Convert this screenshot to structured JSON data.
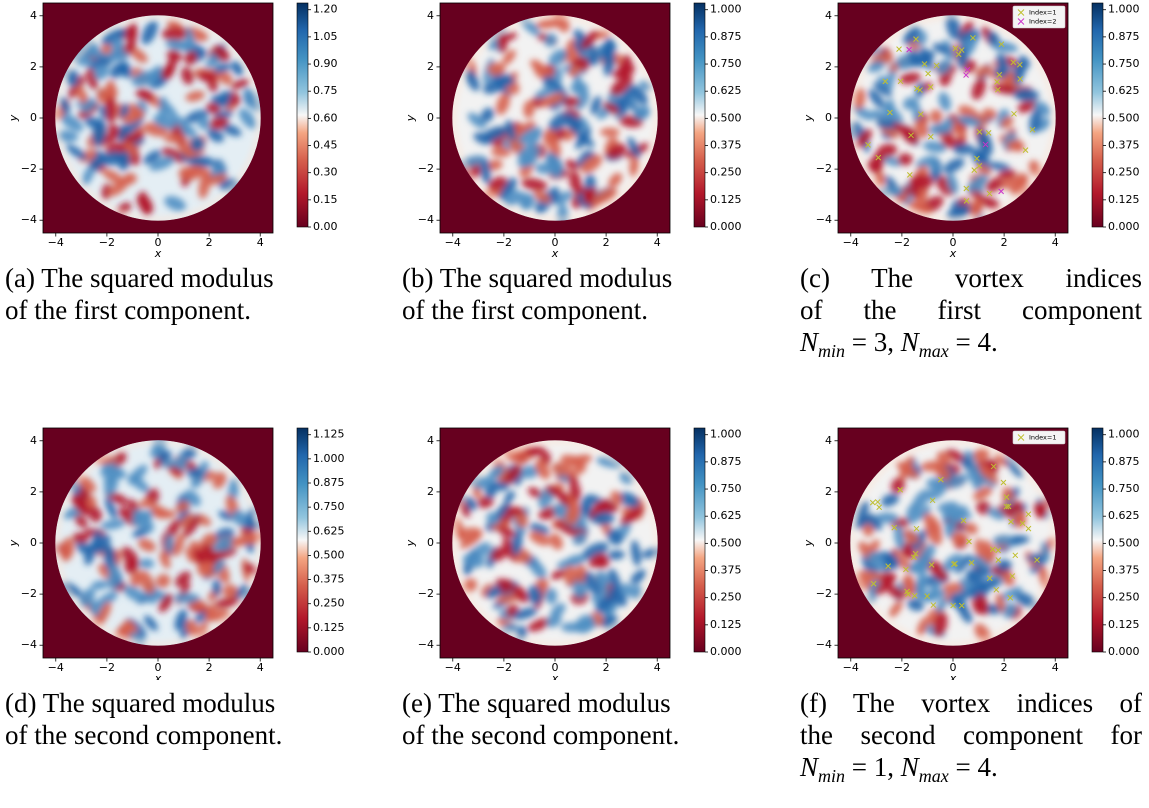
{
  "figure": {
    "axis_ticks": [
      "−4",
      "−2",
      "0",
      "2",
      "4"
    ],
    "x_label": "x",
    "y_label": "y",
    "panels": [
      {
        "colorbar": [
          "0.00",
          "0.15",
          "0.30",
          "0.45",
          "0.60",
          "0.75",
          "0.90",
          "1.05",
          "1.20"
        ],
        "caption": [
          "(a) The squared modulus",
          "of the first component."
        ]
      },
      {
        "colorbar": [
          "0.000",
          "0.125",
          "0.250",
          "0.375",
          "0.500",
          "0.625",
          "0.750",
          "0.875",
          "1.000"
        ],
        "caption": [
          "(b) The squared modulus",
          "of the first component."
        ]
      },
      {
        "colorbar": [
          "0.000",
          "0.125",
          "0.250",
          "0.375",
          "0.500",
          "0.625",
          "0.750",
          "0.875",
          "1.000"
        ],
        "legend": [
          "Index=1",
          "Index=2"
        ],
        "justified": true,
        "caption": [
          "(c) The vortex indices",
          "of the first component"
        ],
        "math": [
          "N",
          "min",
          " = 3, ",
          "N",
          "max",
          " = 4."
        ]
      },
      {
        "colorbar": [
          "0.000",
          "0.125",
          "0.250",
          "0.375",
          "0.500",
          "0.625",
          "0.750",
          "0.875",
          "1.000",
          "1.125"
        ],
        "caption": [
          "(d) The squared modulus",
          "of the second component."
        ]
      },
      {
        "colorbar": [
          "0.000",
          "0.125",
          "0.250",
          "0.375",
          "0.500",
          "0.625",
          "0.750",
          "0.875",
          "1.000"
        ],
        "caption": [
          "(e) The squared modulus",
          "of the second component."
        ]
      },
      {
        "colorbar": [
          "0.000",
          "0.125",
          "0.250",
          "0.375",
          "0.500",
          "0.625",
          "0.750",
          "0.875",
          "1.000"
        ],
        "legend": [
          "Index=1"
        ],
        "justified": true,
        "caption": [
          "(f) The vortex indices of",
          "the second component for"
        ],
        "math": [
          "N",
          "min",
          " = 1, ",
          "N",
          "max",
          " = 4."
        ]
      }
    ]
  }
}
